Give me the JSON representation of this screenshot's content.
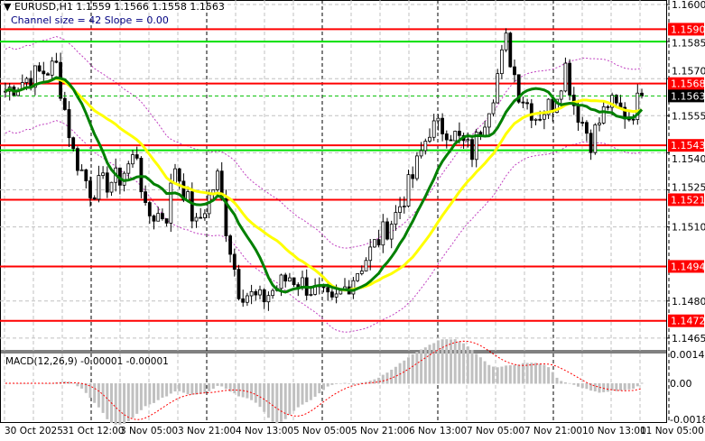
{
  "header": {
    "symbol_line": "EURUSD,H1  1.1559 1.1566 1.1558 1.1563",
    "channel_line": "Channel size = 42 Slope = 0.00"
  },
  "macd": {
    "title": "MACD(12,26,9) -0.00001 -0.00001",
    "axis": [
      "0.00145",
      "0.00",
      "-0.00181"
    ]
  },
  "price_axis": [
    "1.1600",
    "1.1585",
    "1.1570",
    "1.1555",
    "1.1540",
    "1.1525",
    "1.1510",
    "1.1480",
    "1.1465"
  ],
  "price_axis_values": [
    1.16,
    1.1585,
    1.157,
    1.1555,
    1.154,
    1.1525,
    1.151,
    1.148,
    1.1465
  ],
  "levels": [
    {
      "label": "1.1590",
      "value": 1.159,
      "color": "#ff0000"
    },
    {
      "label": "1.1568",
      "value": 1.1568,
      "color": "#ff0000"
    },
    {
      "label": "1.1543",
      "value": 1.1543,
      "color": "#ff0000"
    },
    {
      "label": "1.1521",
      "value": 1.1521,
      "color": "#ff0000"
    },
    {
      "label": "1.1494",
      "value": 1.1494,
      "color": "#ff0000"
    },
    {
      "label": "1.1472",
      "value": 1.1472,
      "color": "#ff0000"
    }
  ],
  "channel_levels": [
    {
      "value": 1.1585,
      "color": "#00e000"
    },
    {
      "value": 1.1541,
      "color": "#00e000"
    }
  ],
  "current_price": {
    "label": "1.1563",
    "value": 1.1563
  },
  "time_axis": [
    "30 Oct 2025",
    "31 Oct 12:00",
    "3 Nov 05:00",
    "3 Nov 21:00",
    "4 Nov 13:00",
    "5 Nov 05:00",
    "5 Nov 21:00",
    "6 Nov 13:00",
    "7 Nov 05:00",
    "7 Nov 21:00",
    "10 Nov 13:00",
    "11 Nov 05:00"
  ],
  "colors": {
    "fast_ma": "#008000",
    "slow_ma": "#ffff00",
    "envelope": "#c040c0",
    "macd_hist": "#c0c0c0",
    "macd_signal": "#ff0000"
  },
  "path": [
    [
      0,
      1.1565
    ],
    [
      5,
      1.157
    ],
    [
      12,
      1.1575
    ],
    [
      16,
      1.154
    ],
    [
      20,
      1.1525
    ],
    [
      27,
      1.153
    ],
    [
      31,
      1.154
    ],
    [
      33,
      1.1515
    ],
    [
      38,
      1.1515
    ],
    [
      40,
      1.1535
    ],
    [
      45,
      1.151
    ],
    [
      50,
      1.153
    ],
    [
      52,
      1.151
    ],
    [
      55,
      1.1485
    ],
    [
      60,
      1.148
    ],
    [
      67,
      1.149
    ],
    [
      72,
      1.1485
    ],
    [
      77,
      1.1478
    ],
    [
      82,
      1.149
    ],
    [
      86,
      1.15
    ],
    [
      92,
      1.1515
    ],
    [
      96,
      1.153
    ],
    [
      100,
      1.155
    ],
    [
      104,
      1.155
    ],
    [
      110,
      1.154
    ],
    [
      115,
      1.1565
    ],
    [
      118,
      1.1585
    ],
    [
      121,
      1.1565
    ],
    [
      125,
      1.1555
    ],
    [
      129,
      1.156
    ],
    [
      132,
      1.1575
    ],
    [
      134,
      1.156
    ],
    [
      138,
      1.1545
    ],
    [
      142,
      1.156
    ],
    [
      147,
      1.1555
    ],
    [
      150,
      1.1563
    ]
  ]
}
